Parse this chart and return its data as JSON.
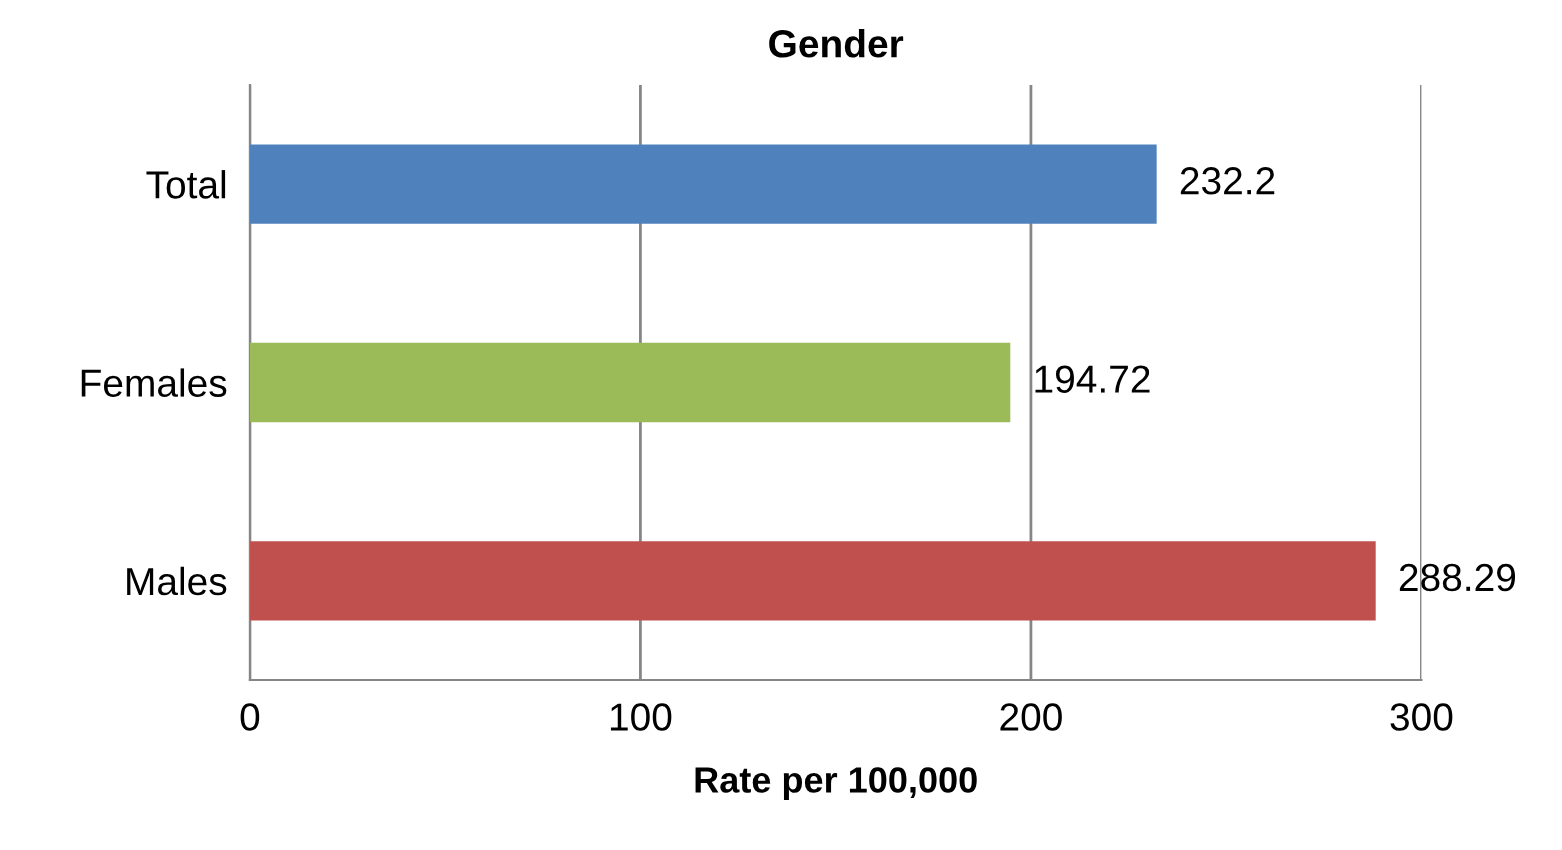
{
  "chart_data": {
    "type": "bar",
    "orientation": "horizontal",
    "title": "Gender",
    "xlabel": "Rate per 100,000",
    "categories": [
      "Total",
      "Females",
      "Males"
    ],
    "values": [
      232.2,
      194.72,
      288.29
    ],
    "colors": [
      "#4f81bd",
      "#9bbb59",
      "#c0504d"
    ],
    "xlim": [
      0,
      300
    ],
    "xticks": [
      0,
      100,
      200,
      300
    ],
    "grid": "x",
    "data_labels": true,
    "legend": false
  }
}
